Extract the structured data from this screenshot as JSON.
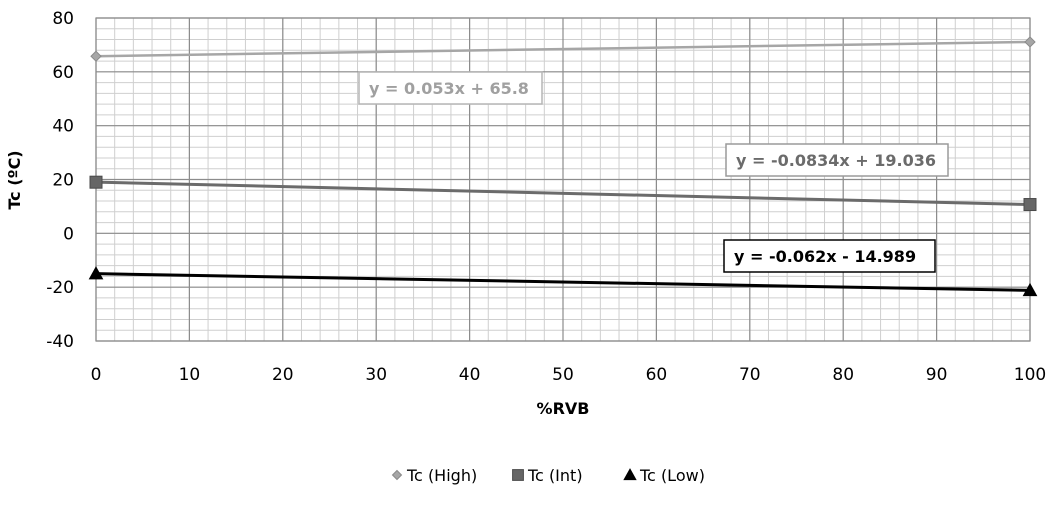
{
  "chart_data": {
    "type": "scatter",
    "xlabel": "%RVB",
    "ylabel": "Tc (ºC)",
    "xlim": [
      0,
      100
    ],
    "ylim": [
      -40,
      80
    ],
    "x_ticks": [
      "0",
      "10",
      "20",
      "30",
      "40",
      "50",
      "60",
      "70",
      "80",
      "90",
      "100"
    ],
    "y_ticks": [
      "80",
      "60",
      "40",
      "20",
      "0",
      "-20",
      "-40"
    ],
    "grid": true,
    "legend_position": "bottom",
    "series": [
      {
        "name": "Tc (High)",
        "marker": "diamond",
        "color": "#9a9a9a",
        "x": [
          0,
          100
        ],
        "y": [
          65.8,
          71.1
        ],
        "trendline": {
          "slope": 0.053,
          "intercept": 65.8,
          "equation": "y = 0.053x + 65.8"
        }
      },
      {
        "name": "Tc (Int)",
        "marker": "square",
        "color": "#5f5f5f",
        "x": [
          0,
          100
        ],
        "y": [
          19.0,
          10.7
        ],
        "trendline": {
          "slope": -0.0834,
          "intercept": 19.036,
          "equation": "y = -0.0834x + 19.036"
        }
      },
      {
        "name": "Tc (Low)",
        "marker": "triangle",
        "color": "#000000",
        "x": [
          0,
          100
        ],
        "y": [
          -15.0,
          -21.2
        ],
        "trendline": {
          "slope": -0.062,
          "intercept": -14.989,
          "equation": "y = -0.062x - 14.989"
        }
      }
    ]
  }
}
